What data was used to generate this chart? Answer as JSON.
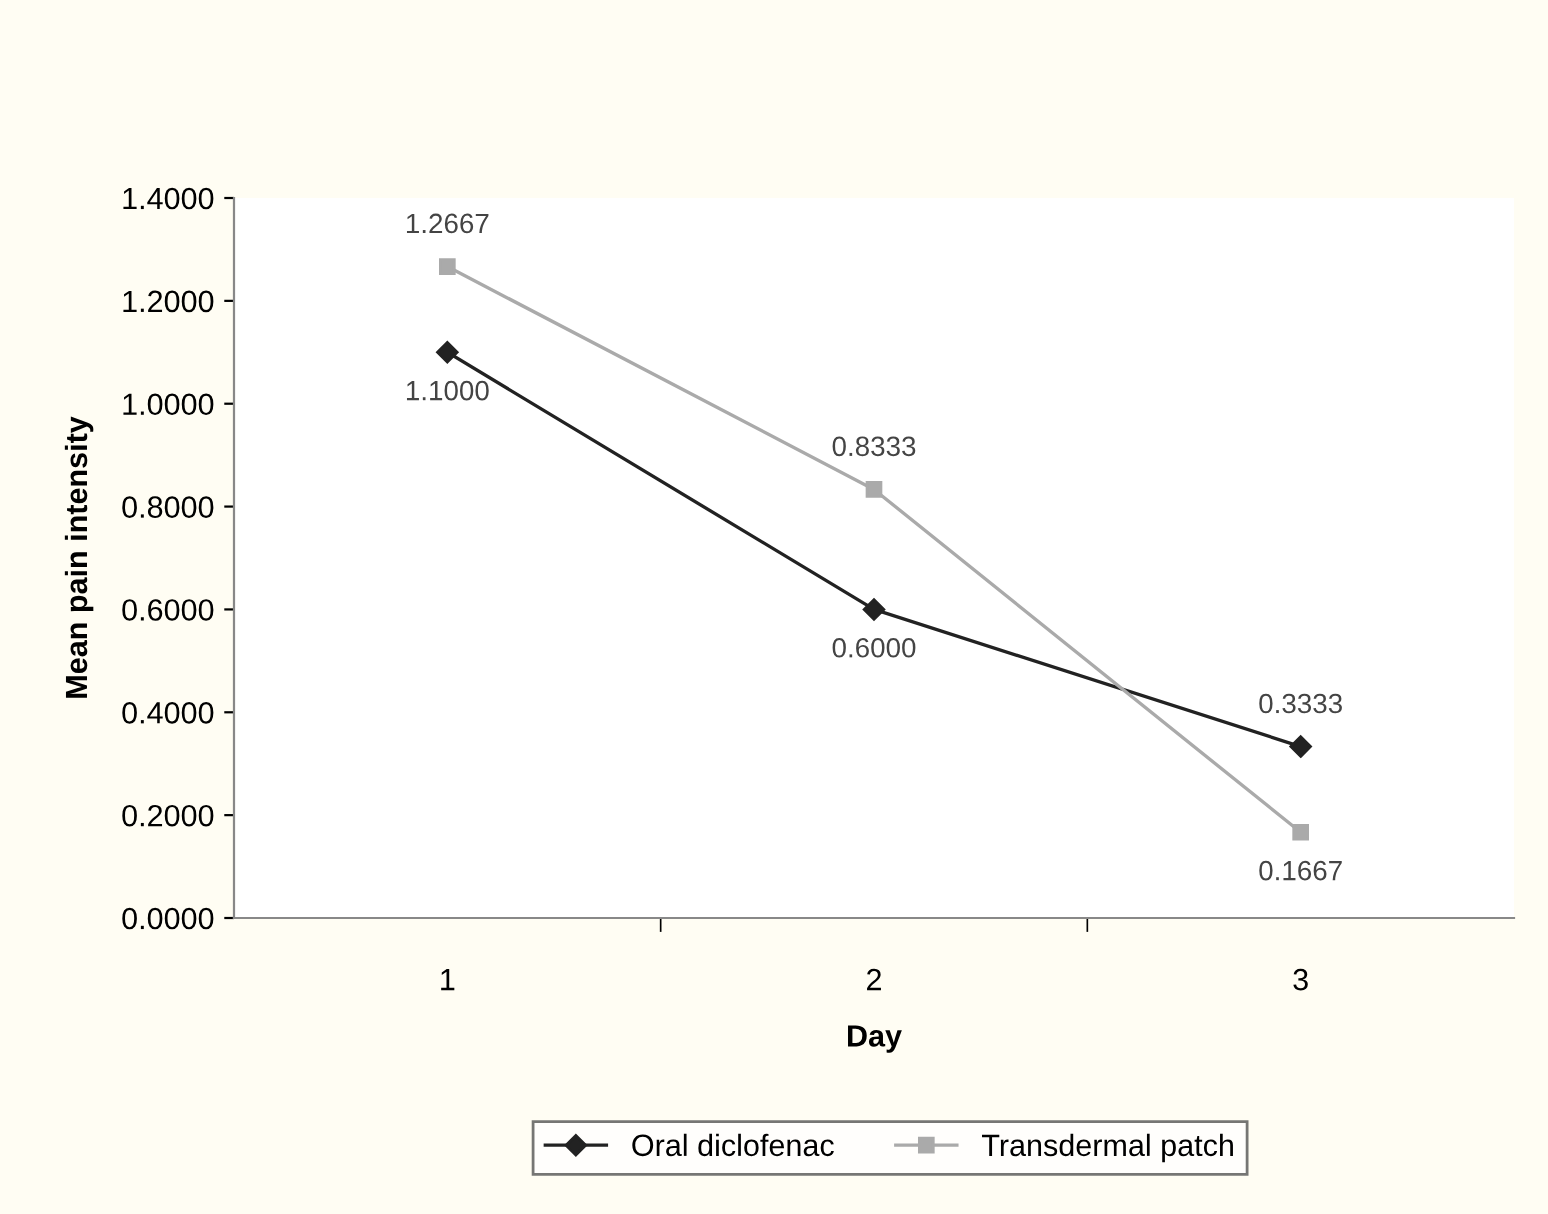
{
  "chart_data": {
    "type": "line",
    "xlabel": "Day",
    "ylabel": "Mean pain intensity",
    "categories": [
      "1",
      "2",
      "3"
    ],
    "series": [
      {
        "name": "Oral diclofenac",
        "color": "#222222",
        "marker": "diamond",
        "values": [
          1.1,
          0.6,
          0.3333
        ],
        "value_labels": [
          "1.1000",
          "0.6000",
          "0.3333"
        ]
      },
      {
        "name": "Transdermal patch",
        "color": "#aaaaaa",
        "marker": "square",
        "values": [
          1.2667,
          0.8333,
          0.1667
        ],
        "value_labels": [
          "1.2667",
          "0.8333",
          "0.1667"
        ]
      }
    ],
    "ylim": [
      0,
      1.4
    ],
    "yticks": [
      {
        "value": 0,
        "label": "0.0000"
      },
      {
        "value": 0.2,
        "label": "0.2000"
      },
      {
        "value": 0.4,
        "label": "0.4000"
      },
      {
        "value": 0.6,
        "label": "0.6000"
      },
      {
        "value": 0.8,
        "label": "0.8000"
      },
      {
        "value": 1.0,
        "label": "1.0000"
      },
      {
        "value": 1.2,
        "label": "1.2000"
      },
      {
        "value": 1.4,
        "label": "1.4000"
      }
    ],
    "grid": false,
    "legend": "bottom",
    "line_style": "solid"
  }
}
